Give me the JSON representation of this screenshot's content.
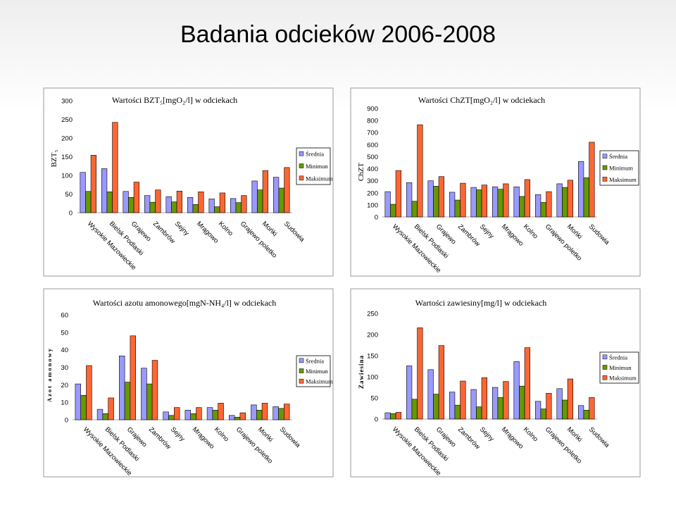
{
  "slide": {
    "title": "Badania odcieków 2006-2008"
  },
  "colors": {
    "srednia": "#9999FF",
    "minimum": "#669900",
    "maksimum": "#FF6633"
  },
  "chart_data": [
    {
      "type": "bar",
      "title": "Wartości BZT₅[mgO₂/l] w odciekach",
      "ylabel": "BZT₅",
      "ylim": [
        0,
        300
      ],
      "yticks": [
        "0",
        "50",
        "100",
        "150",
        "200",
        "250",
        "300"
      ],
      "categories": [
        "Wysokie Mazowieckie",
        "Bielsk Podlaski",
        "Grajewo",
        "Zambrów",
        "Sejny",
        "Mrągowo",
        "Kolno",
        "Grajewo poletko",
        "Mońki",
        "Sudowia"
      ],
      "legend": [
        "Średnia",
        "Minimun",
        "Maksimum"
      ],
      "series": [
        {
          "name": "Średnia",
          "values": [
            108,
            118,
            57,
            46,
            43,
            41,
            37,
            38,
            85,
            95
          ]
        },
        {
          "name": "Minimun",
          "values": [
            57,
            56,
            41,
            28,
            29,
            22,
            16,
            27,
            61,
            66
          ]
        },
        {
          "name": "Maksimum",
          "values": [
            154,
            242,
            82,
            61,
            58,
            56,
            53,
            46,
            113,
            121
          ]
        }
      ]
    },
    {
      "type": "bar",
      "title": "Wartości ChZT[mgO₂/l] w odciekach",
      "ylabel": "ChZT",
      "ylim": [
        0,
        900
      ],
      "yticks": [
        "0",
        "100",
        "200",
        "300",
        "400",
        "500",
        "600",
        "700",
        "800",
        "900"
      ],
      "categories": [
        "Wysokie Mazowieckie",
        "Bielsk Podlaski",
        "Grajewo",
        "Zambrów",
        "Sejny",
        "Mrągowo",
        "Kolno",
        "Grajewo poletko",
        "Mońki",
        "Sudowia"
      ],
      "legend": [
        "Średnia",
        "Minimum",
        "Maksimum"
      ],
      "series": [
        {
          "name": "Średnia",
          "values": [
            210,
            285,
            300,
            205,
            245,
            250,
            250,
            185,
            275,
            460
          ]
        },
        {
          "name": "Minimum",
          "values": [
            105,
            130,
            255,
            140,
            225,
            230,
            170,
            120,
            245,
            325
          ]
        },
        {
          "name": "Maksimum",
          "values": [
            385,
            765,
            335,
            280,
            265,
            275,
            310,
            210,
            305,
            620
          ]
        }
      ]
    },
    {
      "type": "bar",
      "title": "Wartości azotu amonowego[mgN-NH₄/l] w odciekach",
      "ylabel": "Azot amonowy",
      "ylim": [
        0,
        60
      ],
      "yticks": [
        "0",
        "10",
        "20",
        "30",
        "40",
        "50",
        "60"
      ],
      "categories": [
        "Wysokie Mazowieckie",
        "Bielsk Podlaski",
        "Grajewo",
        "Zambrów",
        "Sejny",
        "Mrągowo",
        "Kolno",
        "Grajewo poletko",
        "Mońki",
        "Sudowia"
      ],
      "legend": [
        "Średnia",
        "Minimun",
        "Maksimum"
      ],
      "series": [
        {
          "name": "Średnia",
          "values": [
            20.5,
            6,
            36.5,
            29.5,
            4.5,
            5.5,
            7,
            2.5,
            8.5,
            7.5
          ]
        },
        {
          "name": "Minimun",
          "values": [
            14,
            3.5,
            21.5,
            20.5,
            2.5,
            3.5,
            5.5,
            1.5,
            5.5,
            6.5
          ]
        },
        {
          "name": "Maksimum",
          "values": [
            31,
            12.5,
            48,
            34,
            7,
            7,
            9.5,
            4,
            9.5,
            9
          ]
        }
      ]
    },
    {
      "type": "bar",
      "title": "Wartości zawiesiny[mg/l] w odciekach",
      "ylabel": "Zawiesina",
      "ylim": [
        0,
        250
      ],
      "yticks": [
        "0",
        "50",
        "100",
        "150",
        "200",
        "250"
      ],
      "categories": [
        "Wysokie Mazowieckie",
        "Bielsk Podlaski",
        "Grajewo",
        "Zambrów",
        "Sejny",
        "Mrągowo",
        "Kolno",
        "Grajewo poletko",
        "Mońki",
        "Sudowia"
      ],
      "legend": [
        "Średnia",
        "Minimun",
        "Maksimum"
      ],
      "series": [
        {
          "name": "Średnia",
          "values": [
            15,
            126,
            117,
            64,
            70,
            75,
            136,
            42,
            72,
            32
          ]
        },
        {
          "name": "Minimun",
          "values": [
            13,
            47,
            59,
            33,
            29,
            51,
            78,
            24,
            45,
            21
          ]
        },
        {
          "name": "Maksimum",
          "values": [
            16,
            216,
            174,
            90,
            98,
            89,
            169,
            61,
            95,
            51
          ]
        }
      ]
    }
  ]
}
